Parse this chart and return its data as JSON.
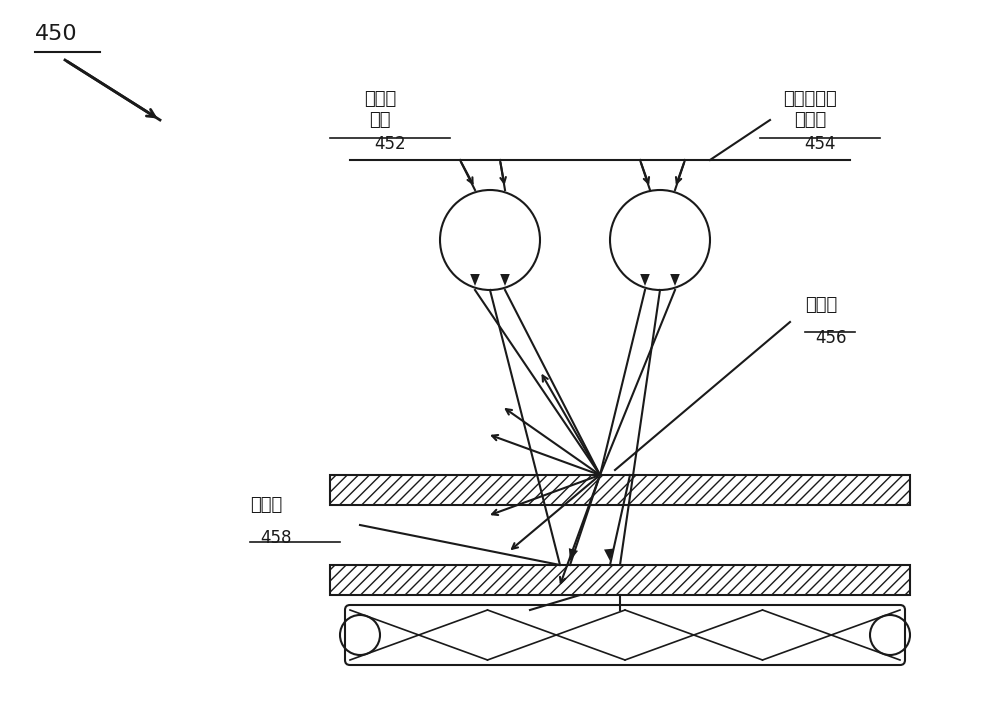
{
  "bg_color": "#ffffff",
  "line_color": "#1a1a1a",
  "hatch_color": "#555555",
  "label_450": "450",
  "label_452": "452",
  "label_454": "454",
  "label_456": "456",
  "label_458": "458",
  "text_retina_image": "视网膜\n图像",
  "text_stray_light": "视网膜上的\n杂散光",
  "text_scatter1": "光散射",
  "text_scatter2": "光散射",
  "figsize": [
    10.0,
    7.1
  ],
  "dpi": 100
}
